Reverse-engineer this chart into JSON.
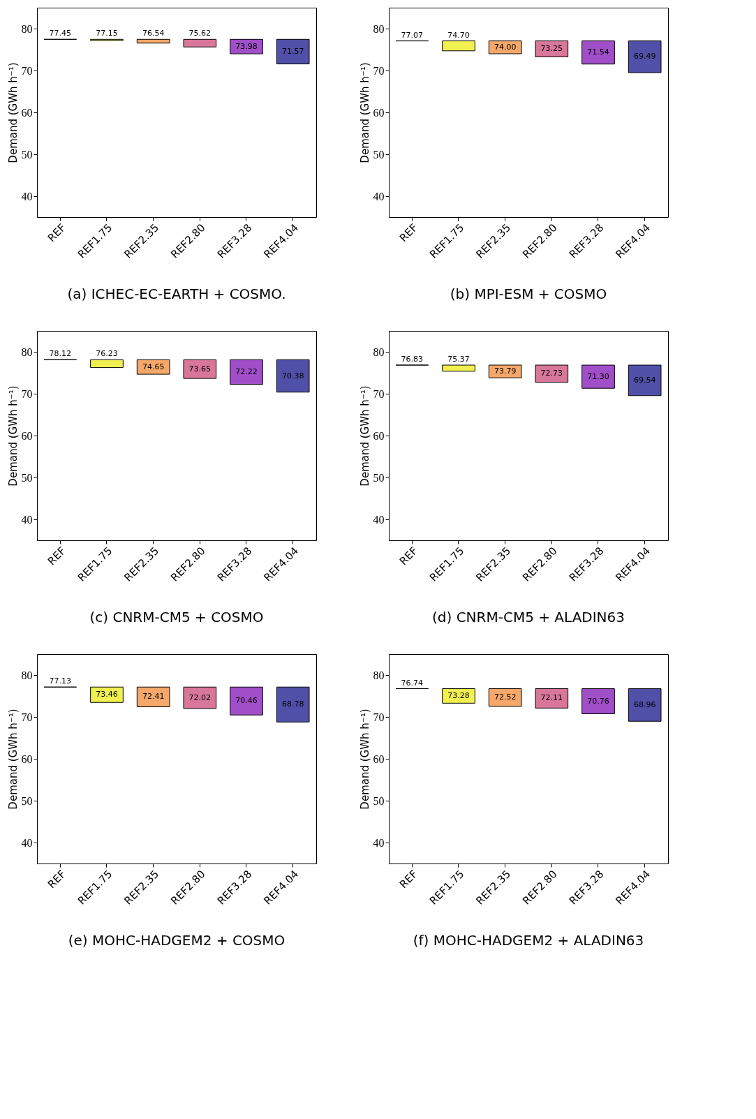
{
  "chart_data": [
    {
      "type": "bar",
      "title": "(a) ICHEC-EC-EARTH + COSMO.",
      "ylabel": "Demand (GWh h⁻¹)",
      "categories": [
        "REF",
        "REF1.75",
        "REF2.35",
        "REF2.80",
        "REF3.28",
        "REF4.04"
      ],
      "base": [
        77.45,
        77.45,
        77.45,
        77.45,
        77.45,
        77.45
      ],
      "values": [
        0,
        -0.3,
        -0.91,
        -1.83,
        -3.47,
        -5.88
      ],
      "value_labels": [
        "77.45",
        "77.15",
        "76.54",
        "75.62",
        "73.98",
        "71.57"
      ],
      "colors": [
        "#000000",
        "#f0f050",
        "#f5a86a",
        "#d87799",
        "#a04fc8",
        "#5050a8"
      ],
      "ylim": [
        35,
        85
      ],
      "yticks": [
        40,
        50,
        60,
        70,
        80
      ]
    },
    {
      "type": "bar",
      "title": "(b) MPI-ESM + COSMO",
      "ylabel": "Demand (GWh h⁻¹)",
      "categories": [
        "REF",
        "REF1.75",
        "REF2.35",
        "REF2.80",
        "REF3.28",
        "REF4.04"
      ],
      "base": [
        77.07,
        77.07,
        77.07,
        77.07,
        77.07,
        77.07
      ],
      "values": [
        0,
        -2.37,
        -3.07,
        -3.82,
        -5.53,
        -7.58
      ],
      "value_labels": [
        "77.07",
        "74.70",
        "74.00",
        "73.25",
        "71.54",
        "69.49"
      ],
      "colors": [
        "#000000",
        "#f0f050",
        "#f5a86a",
        "#d87799",
        "#a04fc8",
        "#5050a8"
      ],
      "ylim": [
        35,
        85
      ],
      "yticks": [
        40,
        50,
        60,
        70,
        80
      ]
    },
    {
      "type": "bar",
      "title": "(c) CNRM-CM5 + COSMO",
      "ylabel": "Demand (GWh h⁻¹)",
      "categories": [
        "REF",
        "REF1.75",
        "REF2.35",
        "REF2.80",
        "REF3.28",
        "REF4.04"
      ],
      "base": [
        78.12,
        78.12,
        78.12,
        78.12,
        78.12,
        78.12
      ],
      "values": [
        0,
        -1.89,
        -3.47,
        -4.47,
        -5.9,
        -7.74
      ],
      "value_labels": [
        "78.12",
        "76.23",
        "74.65",
        "73.65",
        "72.22",
        "70.38"
      ],
      "colors": [
        "#000000",
        "#f0f050",
        "#f5a86a",
        "#d87799",
        "#a04fc8",
        "#5050a8"
      ],
      "ylim": [
        35,
        85
      ],
      "yticks": [
        40,
        50,
        60,
        70,
        80
      ]
    },
    {
      "type": "bar",
      "title": "(d) CNRM-CM5 + ALADIN63",
      "ylabel": "Demand (GWh h⁻¹)",
      "categories": [
        "REF",
        "REF1.75",
        "REF2.35",
        "REF2.80",
        "REF3.28",
        "REF4.04"
      ],
      "base": [
        76.83,
        76.83,
        76.83,
        76.83,
        76.83,
        76.83
      ],
      "values": [
        0,
        -1.46,
        -3.04,
        -4.1,
        -5.53,
        -7.29
      ],
      "value_labels": [
        "76.83",
        "75.37",
        "73.79",
        "72.73",
        "71.30",
        "69.54"
      ],
      "colors": [
        "#000000",
        "#f0f050",
        "#f5a86a",
        "#d87799",
        "#a04fc8",
        "#5050a8"
      ],
      "ylim": [
        35,
        85
      ],
      "yticks": [
        40,
        50,
        60,
        70,
        80
      ]
    },
    {
      "type": "bar",
      "title": "(e) MOHC-HADGEM2 + COSMO",
      "ylabel": "Demand (GWh h⁻¹)",
      "categories": [
        "REF",
        "REF1.75",
        "REF2.35",
        "REF2.80",
        "REF3.28",
        "REF4.04"
      ],
      "base": [
        77.13,
        77.13,
        77.13,
        77.13,
        77.13,
        77.13
      ],
      "values": [
        0,
        -3.67,
        -4.72,
        -5.11,
        -6.67,
        -8.35
      ],
      "value_labels": [
        "77.13",
        "73.46",
        "72.41",
        "72.02",
        "70.46",
        "68.78"
      ],
      "colors": [
        "#000000",
        "#f0f050",
        "#f5a86a",
        "#d87799",
        "#a04fc8",
        "#5050a8"
      ],
      "ylim": [
        35,
        85
      ],
      "yticks": [
        40,
        50,
        60,
        70,
        80
      ]
    },
    {
      "type": "bar",
      "title": "(f) MOHC-HADGEM2 + ALADIN63",
      "ylabel": "Demand (GWh h⁻¹)",
      "categories": [
        "REF",
        "REF1.75",
        "REF2.35",
        "REF2.80",
        "REF3.28",
        "REF4.04"
      ],
      "base": [
        76.74,
        76.74,
        76.74,
        76.74,
        76.74,
        76.74
      ],
      "values": [
        0,
        -3.46,
        -4.22,
        -4.63,
        -5.98,
        -7.78
      ],
      "value_labels": [
        "76.74",
        "73.28",
        "72.52",
        "72.11",
        "70.76",
        "68.96"
      ],
      "colors": [
        "#000000",
        "#f0f050",
        "#f5a86a",
        "#d87799",
        "#a04fc8",
        "#5050a8"
      ],
      "ylim": [
        35,
        85
      ],
      "yticks": [
        40,
        50,
        60,
        70,
        80
      ]
    }
  ]
}
